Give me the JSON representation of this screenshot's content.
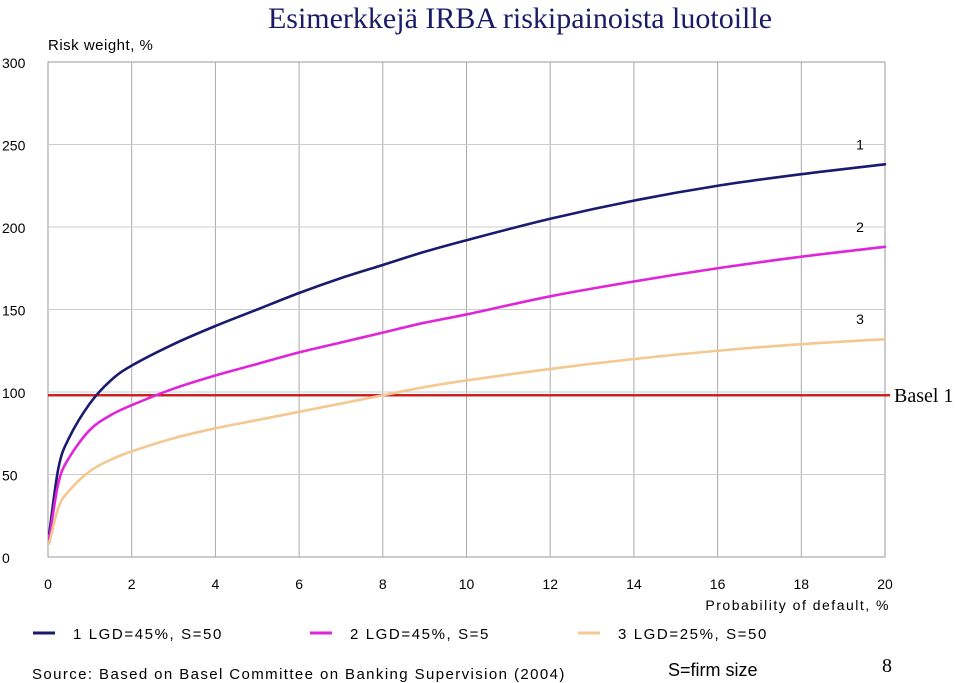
{
  "chart_data": {
    "type": "line",
    "title": "Esimerkkejä IRBA riskipainoista luotoille",
    "ylabel": "Risk weight, %",
    "xlabel": "Probability of default, %",
    "xlim": [
      0,
      20
    ],
    "ylim": [
      0,
      300
    ],
    "x_ticks": [
      "0",
      "2",
      "4",
      "6",
      "8",
      "10",
      "12",
      "14",
      "16",
      "18",
      "20"
    ],
    "y_ticks": [
      "0",
      "50",
      "100",
      "150",
      "200",
      "250",
      "300"
    ],
    "grid": "vertical lines at each x tick, horizontal lines at each y tick",
    "series": [
      {
        "name": "1 LGD=45%, S=50",
        "end_label": "1",
        "color": "#1a1a6e",
        "x": [
          0.03,
          0.25,
          0.5,
          1,
          1.5,
          2,
          3,
          4,
          5,
          6,
          7,
          8,
          9,
          10,
          12,
          14,
          16,
          18,
          20
        ],
        "y": [
          14,
          54,
          72,
          93,
          107,
          116,
          129,
          140,
          150,
          160,
          169,
          177,
          185,
          192,
          205,
          216,
          225,
          232,
          238
        ]
      },
      {
        "name": "2 LGD=45%, S=5",
        "end_label": "2",
        "color": "#e024d8",
        "x": [
          0.03,
          0.25,
          0.5,
          1,
          1.5,
          2,
          3,
          4,
          5,
          6,
          7,
          8,
          9,
          10,
          12,
          14,
          16,
          18,
          20
        ],
        "y": [
          11,
          45,
          60,
          77,
          86,
          92,
          102,
          110,
          117,
          124,
          130,
          136,
          142,
          147,
          158,
          167,
          175,
          182,
          188
        ]
      },
      {
        "name": "3 LGD=25%, S=50",
        "end_label": "3",
        "color": "#f5c892",
        "x": [
          0.03,
          0.25,
          0.5,
          1,
          1.5,
          2,
          3,
          4,
          5,
          6,
          7,
          8,
          9,
          10,
          12,
          14,
          16,
          18,
          20
        ],
        "y": [
          8,
          30,
          40,
          52,
          59,
          64,
          72,
          78,
          83,
          88,
          93,
          98,
          103,
          107,
          114,
          120,
          125,
          129,
          132
        ]
      }
    ],
    "reference_line": {
      "label": "Basel 1",
      "y": 98,
      "color": "#cc2222"
    },
    "legend_placement": "bottom"
  },
  "source_text": "Source: Based on Basel Committee on Banking Supervision (2004)",
  "note_text": "S=firm size",
  "page_number": "8"
}
